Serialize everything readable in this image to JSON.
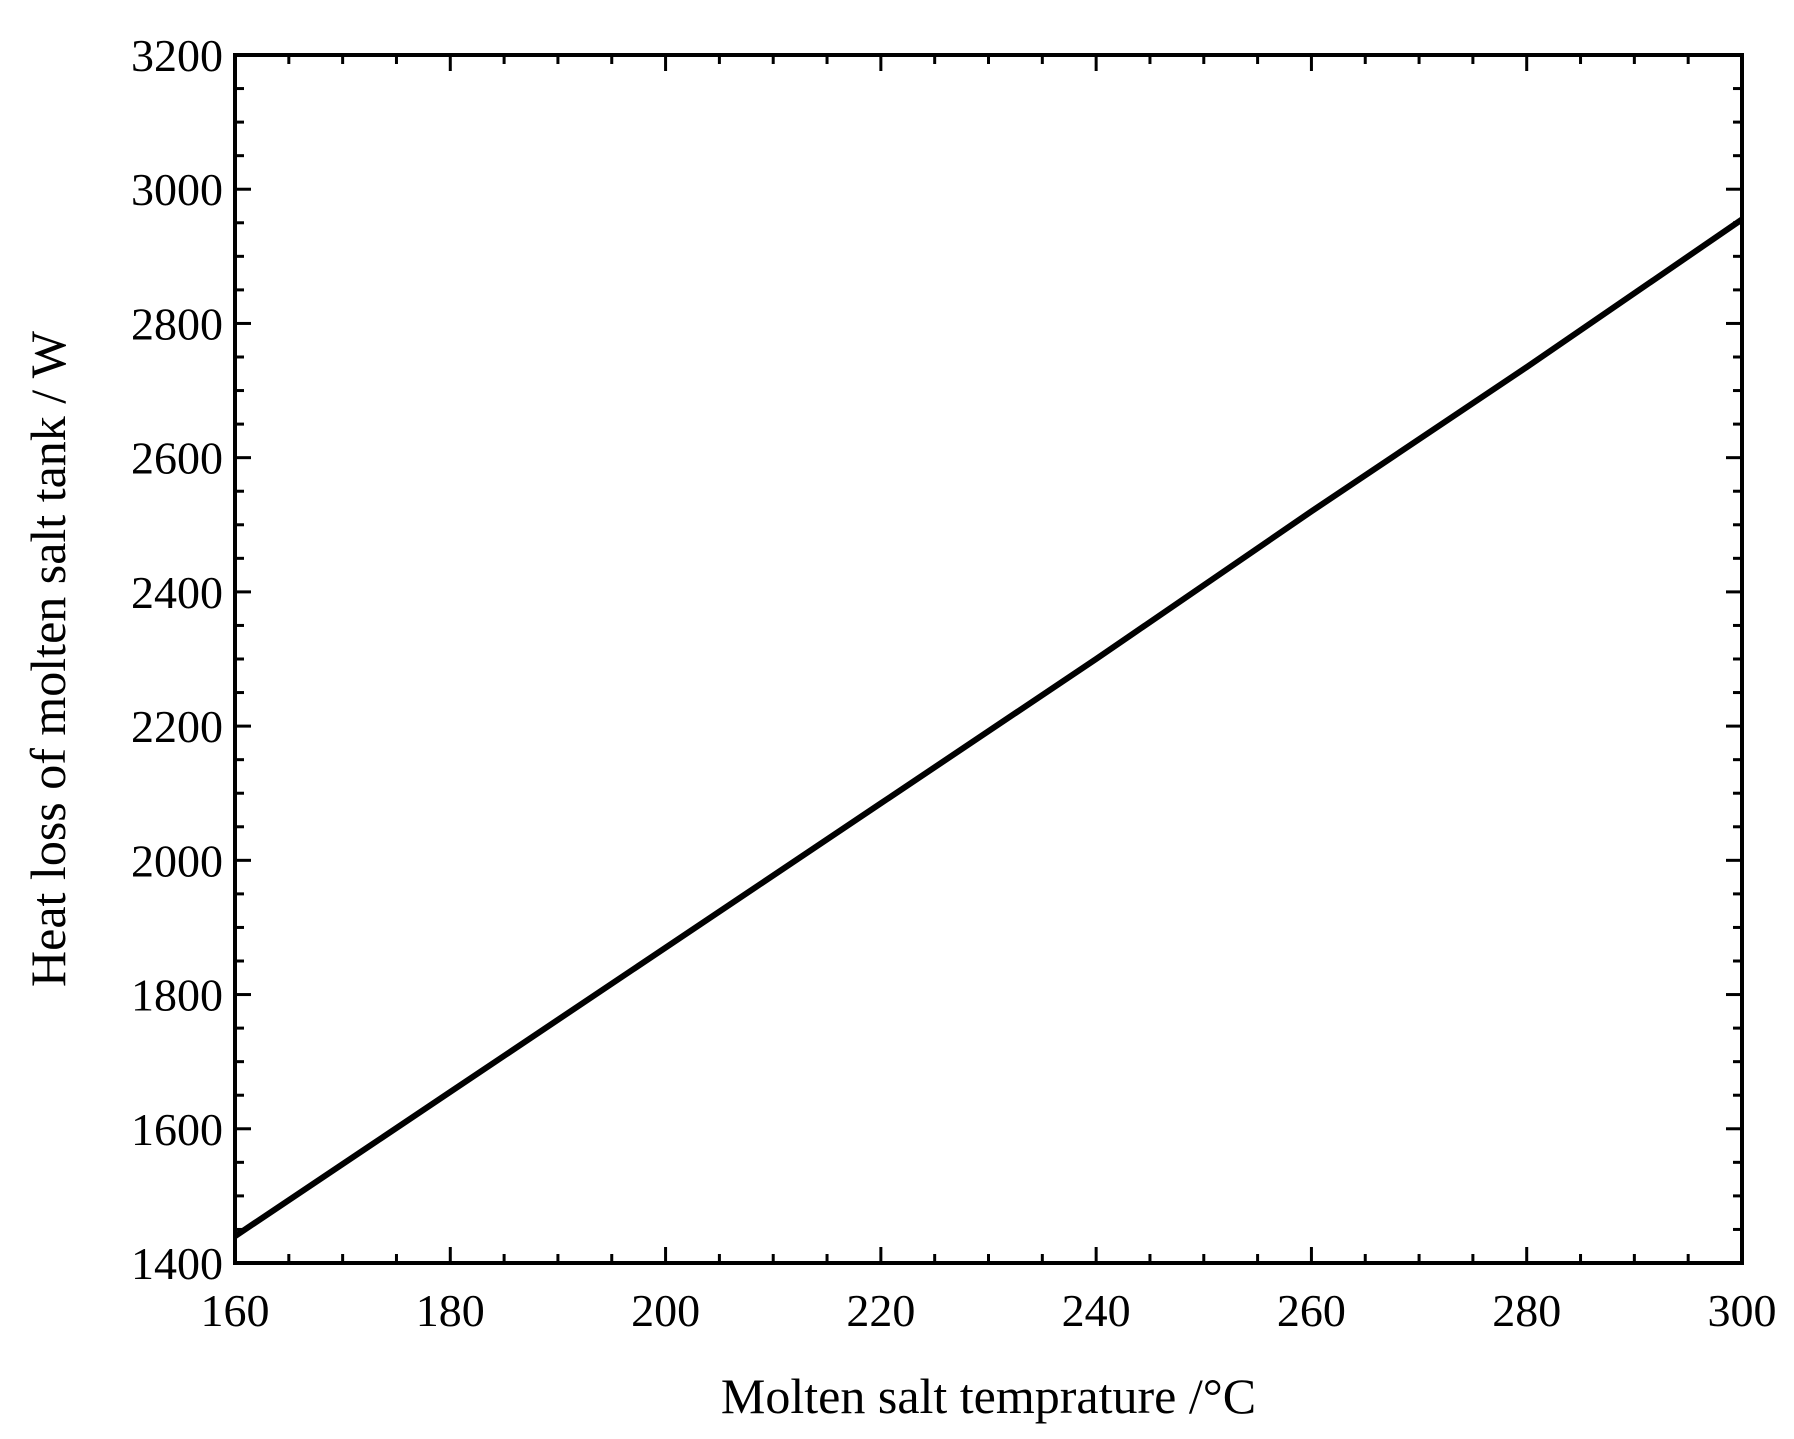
{
  "chart_data": {
    "type": "line",
    "title": "",
    "xlabel": "Molten salt temprature /°C",
    "ylabel": "Heat loss of molten salt tank / W",
    "xlim": [
      160,
      300
    ],
    "ylim": [
      1400,
      3200
    ],
    "x_ticks": [
      160,
      180,
      200,
      220,
      240,
      260,
      280,
      300
    ],
    "y_ticks": [
      1400,
      1600,
      1800,
      2000,
      2200,
      2400,
      2600,
      2800,
      3000,
      3200
    ],
    "x_minor_step": 5,
    "y_minor_step": 50,
    "grid": false,
    "legend": "none",
    "series": [
      {
        "color": "#000000",
        "x": [
          160,
          180,
          200,
          220,
          240,
          260,
          280,
          300
        ],
        "y": [
          1440,
          1655,
          1870,
          2085,
          2300,
          2520,
          2735,
          2955
        ]
      }
    ]
  }
}
